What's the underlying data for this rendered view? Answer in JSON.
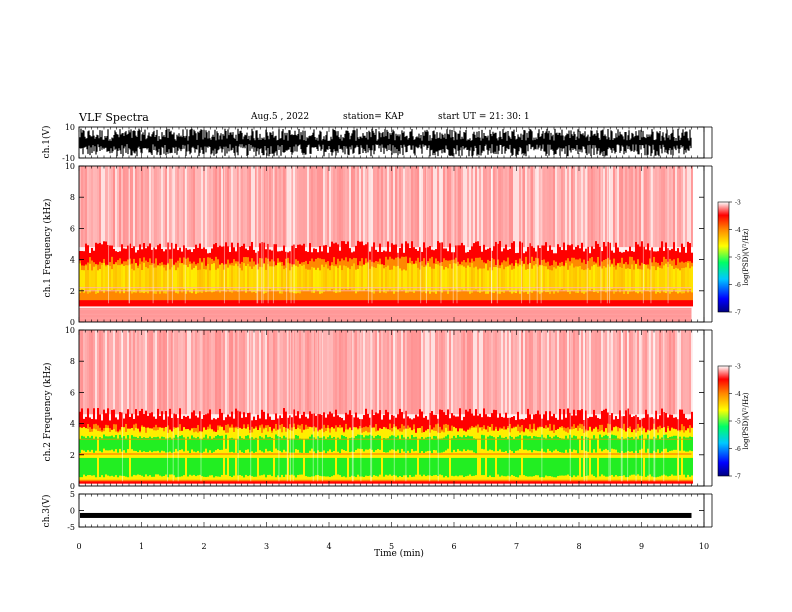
{
  "header": {
    "title": "VLF Spectra",
    "date": "Aug.5 , 2022",
    "station": "station= KAP",
    "start": "start UT = 21: 30: 1"
  },
  "chart_data": [
    {
      "type": "line",
      "id": "ch1-waveform",
      "ylabel": "ch.1(V)",
      "ylim": [
        -10,
        10
      ],
      "yticks": [
        10,
        -10
      ],
      "xlim": [
        0,
        10
      ],
      "note_values": "dense waveform spanning roughly -9 to +9 V across 0-9.8 min"
    },
    {
      "type": "heatmap",
      "id": "ch1-spectrogram",
      "ylabel": "ch.1 Frequency (kHz)",
      "ylim": [
        0,
        10
      ],
      "yticks": [
        0,
        2,
        4,
        6,
        8,
        10
      ],
      "xlim": [
        0,
        10
      ],
      "data_end_min": 9.8,
      "bands": {
        "yellow_kHz": [
          2,
          3.8
        ],
        "orange_kHz": [
          1,
          4.8
        ],
        "red_above_kHz": 4.8
      },
      "colorbar": {
        "label": "log(PSD)(V²/Hz)",
        "ticks": [
          -3,
          -4,
          -5,
          -6,
          -7
        ],
        "range": [
          -7,
          -3
        ]
      }
    },
    {
      "type": "heatmap",
      "id": "ch2-spectrogram",
      "ylabel": "ch.2 Frequency (kHz)",
      "ylim": [
        0,
        10
      ],
      "yticks": [
        0,
        2,
        4,
        6,
        8,
        10
      ],
      "xlim": [
        0,
        10
      ],
      "data_end_min": 9.8,
      "bands": {
        "green_kHz": [
          [
            0.6,
            1.8
          ],
          [
            2.1,
            3.0
          ]
        ],
        "yellow_kHz": [
          0.3,
          3.5
        ],
        "orange_kHz": [
          0.1,
          4.6
        ],
        "red_above_kHz": 4.6
      },
      "colorbar": {
        "label": "log(PSD)(V²/Hz)",
        "ticks": [
          -3,
          -4,
          -5,
          -6,
          -7
        ],
        "range": [
          -7,
          -3
        ]
      }
    },
    {
      "type": "line",
      "id": "ch3-waveform",
      "ylabel": "ch.3(V)",
      "ylim": [
        -5,
        5
      ],
      "yticks": [
        5,
        0,
        -5
      ],
      "xlim": [
        0,
        10
      ],
      "level_V": -1.5,
      "xlabel": "Time (min)",
      "xticks": [
        0,
        1,
        2,
        3,
        4,
        5,
        6,
        7,
        8,
        9,
        10
      ]
    }
  ],
  "colors": {
    "red": "#ff0000",
    "orange": "#ff8800",
    "yellow": "#ffee00",
    "green": "#22ee22",
    "light_red": "#ff9090"
  }
}
